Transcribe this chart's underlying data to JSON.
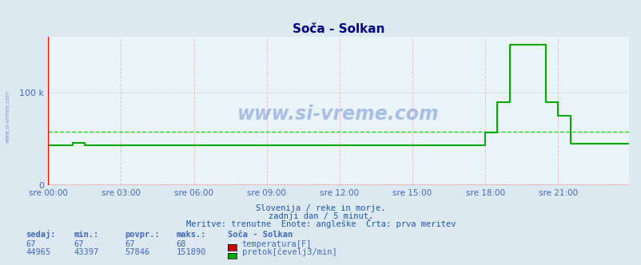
{
  "title": "Soča - Solkan",
  "bg_color": "#dce9f0",
  "plot_bg_color": "#eaf4f8",
  "title_color": "#000080",
  "axis_color": "#4466bb",
  "grid_color_v": "#ffaaaa",
  "grid_color_h": "#bbbbbb",
  "temp_color": "#cc0000",
  "flow_color": "#00aa00",
  "avg_flow_color": "#00cc00",
  "watermark_color": "#1144bb",
  "xlim": [
    0,
    287
  ],
  "ylim": [
    0,
    160000
  ],
  "ytick_val": 100000,
  "ytick_label": "100 k",
  "xtick_positions": [
    0,
    36,
    72,
    108,
    144,
    180,
    216,
    252
  ],
  "xtick_labels": [
    "sre 00:00",
    "sre 03:00",
    "sre 06:00",
    "sre 09:00",
    "sre 12:00",
    "sre 15:00",
    "sre 18:00",
    "sre 21:00"
  ],
  "subtitle1": "Slovenija / reke in morje.",
  "subtitle2": "zadnji dan / 5 minut.",
  "subtitle3": "Meritve: trenutne  Enote: angleške  Črta: prva meritev",
  "subtitle_color": "#2255aa",
  "legend_title": "Soča - Solkan",
  "temp_label": "temperatura[F]",
  "flow_label": "pretok[čevelj3/min]",
  "stats_headers": [
    "sedaj:",
    "min.:",
    "povpr.:",
    "maks.:"
  ],
  "temp_stats": [
    "67",
    "67",
    "67",
    "68"
  ],
  "flow_stats": [
    "44965",
    "43397",
    "57846",
    "151890"
  ],
  "avg_flow": 57846,
  "watermark": "www.si-vreme.com",
  "n_points": 288
}
